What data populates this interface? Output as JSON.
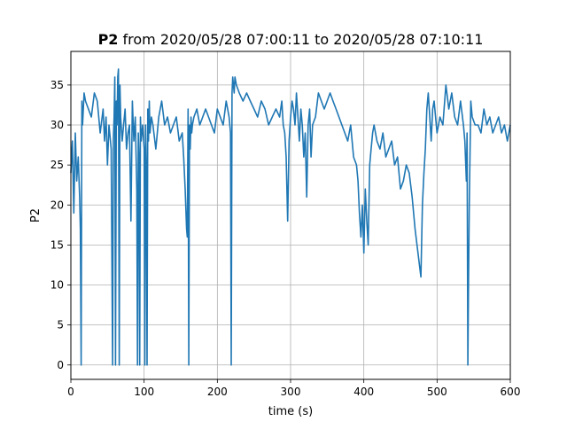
{
  "title": {
    "bold_part": "P2",
    "rest": " from 2020/05/28 07:00:11 to 2020/05/28 07:10:11"
  },
  "chart_data": {
    "type": "line",
    "xlabel": "time (s)",
    "ylabel": "P2",
    "xlim": [
      0,
      600
    ],
    "ylim": [
      -1.8,
      39.2
    ],
    "xticks": [
      0,
      100,
      200,
      300,
      400,
      500,
      600
    ],
    "yticks": [
      0,
      5,
      10,
      15,
      20,
      25,
      30,
      35
    ],
    "grid": true,
    "line_color": "#1f77b4",
    "series": [
      {
        "x": [
          0,
          2,
          4,
          6,
          8,
          10,
          12,
          13,
          14,
          15,
          16,
          18,
          20,
          24,
          28,
          32,
          36,
          40,
          44,
          46,
          48,
          50,
          52,
          55,
          57,
          58,
          59,
          60,
          61,
          62,
          63,
          64,
          65,
          66,
          67,
          68,
          70,
          72,
          74,
          76,
          78,
          80,
          82,
          84,
          86,
          88,
          90,
          91,
          92,
          93,
          94,
          95,
          96,
          98,
          100,
          101,
          102,
          103,
          104,
          105,
          106,
          107,
          108,
          110,
          112,
          116,
          120,
          124,
          128,
          132,
          136,
          140,
          144,
          148,
          152,
          154,
          156,
          158,
          159,
          160,
          161,
          162,
          163,
          164,
          165,
          166,
          168,
          172,
          176,
          180,
          184,
          188,
          192,
          196,
          200,
          204,
          208,
          212,
          216,
          218,
          219,
          220,
          221,
          222,
          223,
          224,
          226,
          230,
          235,
          240,
          245,
          250,
          255,
          260,
          265,
          270,
          275,
          280,
          285,
          288,
          290,
          292,
          294,
          296,
          298,
          300,
          302,
          304,
          306,
          308,
          310,
          312,
          314,
          316,
          318,
          320,
          322,
          324,
          326,
          328,
          330,
          334,
          338,
          342,
          346,
          350,
          354,
          358,
          362,
          366,
          370,
          374,
          378,
          382,
          386,
          390,
          392,
          394,
          396,
          398,
          400,
          402,
          404,
          406,
          408,
          410,
          412,
          414,
          418,
          422,
          426,
          430,
          434,
          438,
          442,
          446,
          450,
          454,
          458,
          462,
          466,
          470,
          474,
          478,
          480,
          482,
          484,
          486,
          488,
          490,
          492,
          494,
          496,
          500,
          504,
          508,
          512,
          516,
          520,
          524,
          528,
          532,
          536,
          538,
          540,
          541,
          542,
          543,
          544,
          546,
          548,
          552,
          556,
          560,
          564,
          568,
          572,
          576,
          580,
          584,
          588,
          592,
          596,
          600
        ],
        "y": [
          24,
          28,
          19,
          29,
          23,
          26,
          21,
          17,
          0,
          33,
          30,
          34,
          33,
          32,
          31,
          34,
          33,
          29,
          32,
          28,
          31,
          25,
          30,
          27,
          0,
          28,
          31,
          36,
          0,
          33,
          30,
          36,
          37,
          0,
          35,
          31,
          28,
          30,
          32,
          27,
          29,
          30,
          18,
          33,
          28,
          31,
          22,
          0,
          29,
          26,
          0,
          31,
          28,
          30,
          27,
          0,
          30,
          25,
          0,
          32,
          28,
          33,
          29,
          31,
          30,
          27,
          31,
          33,
          30,
          31,
          29,
          30,
          31,
          28,
          29,
          26,
          22,
          17,
          16,
          32,
          0,
          30,
          27,
          31,
          29,
          30,
          31,
          32,
          30,
          31,
          32,
          31,
          30,
          29,
          32,
          31,
          30,
          33,
          31,
          29,
          0,
          34,
          36,
          35,
          34,
          36,
          35,
          34,
          33,
          34,
          33,
          32,
          31,
          33,
          32,
          30,
          31,
          32,
          31,
          33,
          30,
          29,
          26,
          18,
          28,
          31,
          33,
          32,
          30,
          34,
          31,
          28,
          32,
          30,
          26,
          29,
          21,
          30,
          32,
          26,
          30,
          31,
          34,
          33,
          32,
          33,
          34,
          33,
          32,
          31,
          30,
          29,
          28,
          30,
          26,
          25,
          23,
          19,
          16,
          20,
          14,
          22,
          18,
          15,
          25,
          27,
          29,
          30,
          28,
          27,
          29,
          26,
          27,
          28,
          25,
          26,
          22,
          23,
          25,
          24,
          21,
          17,
          14,
          11,
          20,
          24,
          27,
          32,
          34,
          31,
          28,
          32,
          33,
          29,
          31,
          30,
          35,
          32,
          34,
          31,
          30,
          33,
          30,
          28,
          23,
          29,
          0,
          11,
          20,
          33,
          31,
          30,
          30,
          29,
          32,
          30,
          31,
          29,
          30,
          31,
          29,
          30,
          28,
          30
        ]
      }
    ]
  }
}
